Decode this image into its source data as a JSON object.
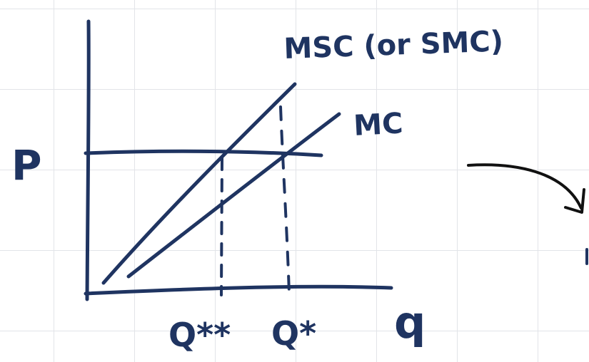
{
  "colors": {
    "ink": "#1f3461",
    "arrow_ink": "#111111",
    "grid": "#e2e4e8",
    "background": "#ffffff"
  },
  "labels": {
    "y_axis": "P",
    "x_axis": "q",
    "msc_curve": "MSC (or SMC)",
    "mc_curve": "MC",
    "q_social_optimum": "Q**",
    "q_market": "Q*"
  }
}
